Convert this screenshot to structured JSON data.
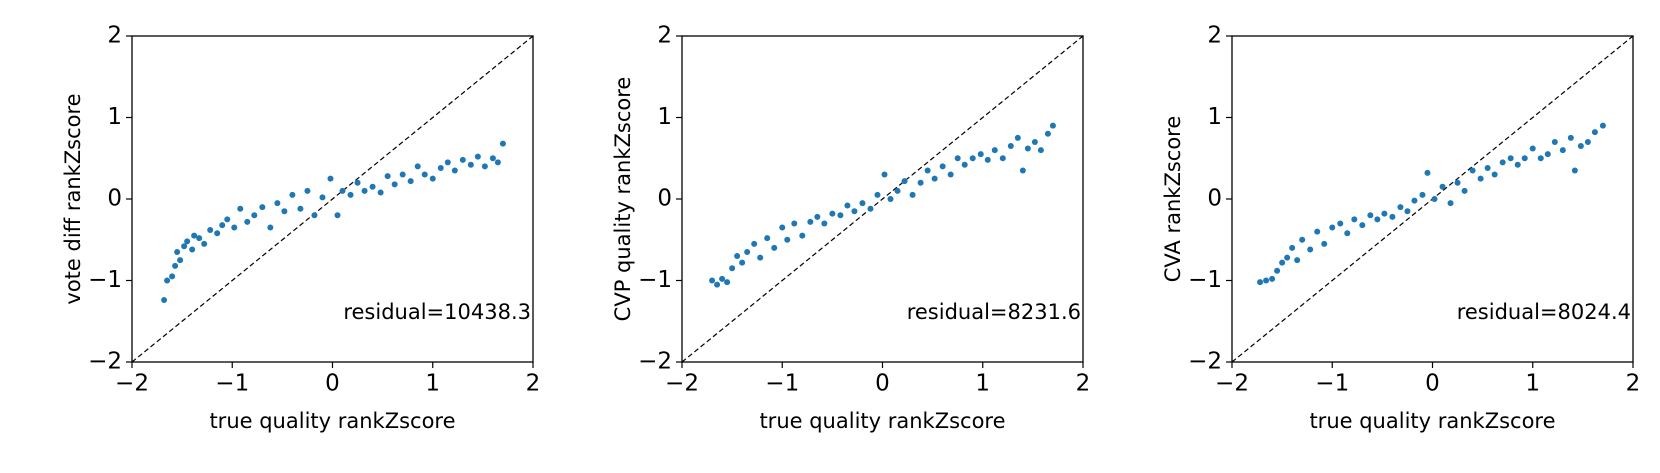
{
  "chart_data": [
    {
      "type": "scatter",
      "xlabel": "true quality rankZscore",
      "ylabel": "vote diff rankZscore",
      "annotation": "residual=10438.3",
      "color": "#1f77b4",
      "xlim": [
        -2,
        2
      ],
      "ylim": [
        -2,
        2
      ],
      "xticks": [
        {
          "value": -2,
          "label": "−2"
        },
        {
          "value": -1,
          "label": "−1"
        },
        0,
        1,
        2
      ],
      "yticks": [
        {
          "value": -2,
          "label": "−2"
        },
        {
          "value": -1,
          "label": "−1"
        },
        0,
        1,
        2
      ],
      "x": [
        -1.68,
        -1.65,
        -1.6,
        -1.57,
        -1.55,
        -1.52,
        -1.48,
        -1.45,
        -1.4,
        -1.38,
        -1.33,
        -1.28,
        -1.22,
        -1.15,
        -1.1,
        -1.05,
        -0.98,
        -0.92,
        -0.85,
        -0.78,
        -0.7,
        -0.62,
        -0.55,
        -0.48,
        -0.4,
        -0.32,
        -0.25,
        -0.18,
        -0.1,
        -0.02,
        0.05,
        0.1,
        0.18,
        0.25,
        0.32,
        0.4,
        0.48,
        0.55,
        0.62,
        0.7,
        0.78,
        0.85,
        0.92,
        1.0,
        1.08,
        1.15,
        1.22,
        1.3,
        1.38,
        1.45,
        1.52,
        1.6,
        1.65,
        1.7
      ],
      "values": [
        -1.24,
        -1.0,
        -0.95,
        -0.82,
        -0.65,
        -0.75,
        -0.58,
        -0.52,
        -0.62,
        -0.45,
        -0.48,
        -0.55,
        -0.38,
        -0.42,
        -0.32,
        -0.25,
        -0.35,
        -0.12,
        -0.28,
        -0.2,
        -0.1,
        -0.35,
        -0.05,
        -0.15,
        0.05,
        -0.12,
        0.1,
        -0.2,
        0.02,
        0.25,
        -0.2,
        0.1,
        0.05,
        0.2,
        0.1,
        0.15,
        0.08,
        0.28,
        0.18,
        0.3,
        0.22,
        0.4,
        0.3,
        0.25,
        0.38,
        0.45,
        0.35,
        0.48,
        0.42,
        0.52,
        0.4,
        0.5,
        0.45,
        0.68
      ]
    },
    {
      "type": "scatter",
      "xlabel": "true quality rankZscore",
      "ylabel": "CVP quality rankZscore",
      "annotation": "residual=8231.6",
      "color": "#1f77b4",
      "xlim": [
        -2,
        2
      ],
      "ylim": [
        -2,
        2
      ],
      "xticks": [
        {
          "value": -2,
          "label": "−2"
        },
        {
          "value": -1,
          "label": "−1"
        },
        0,
        1,
        2
      ],
      "yticks": [
        {
          "value": -2,
          "label": "−2"
        },
        {
          "value": -1,
          "label": "−1"
        },
        0,
        1,
        2
      ],
      "x": [
        -1.7,
        -1.65,
        -1.6,
        -1.55,
        -1.5,
        -1.45,
        -1.4,
        -1.35,
        -1.28,
        -1.22,
        -1.15,
        -1.08,
        -1.0,
        -0.95,
        -0.88,
        -0.8,
        -0.72,
        -0.65,
        -0.58,
        -0.5,
        -0.42,
        -0.35,
        -0.28,
        -0.2,
        -0.12,
        -0.05,
        0.02,
        0.08,
        0.15,
        0.22,
        0.3,
        0.38,
        0.45,
        0.52,
        0.6,
        0.68,
        0.75,
        0.82,
        0.9,
        0.98,
        1.05,
        1.12,
        1.2,
        1.28,
        1.35,
        1.4,
        1.45,
        1.52,
        1.58,
        1.65,
        1.7
      ],
      "values": [
        -1.0,
        -1.05,
        -0.98,
        -1.02,
        -0.85,
        -0.7,
        -0.78,
        -0.65,
        -0.55,
        -0.72,
        -0.48,
        -0.6,
        -0.35,
        -0.5,
        -0.3,
        -0.45,
        -0.28,
        -0.22,
        -0.3,
        -0.18,
        -0.2,
        -0.08,
        -0.15,
        -0.05,
        -0.12,
        0.05,
        0.3,
        0.0,
        0.1,
        0.22,
        0.05,
        0.2,
        0.35,
        0.25,
        0.4,
        0.3,
        0.5,
        0.42,
        0.5,
        0.55,
        0.48,
        0.6,
        0.5,
        0.65,
        0.75,
        0.35,
        0.62,
        0.7,
        0.6,
        0.8,
        0.9
      ]
    },
    {
      "type": "scatter",
      "xlabel": "true quality rankZscore",
      "ylabel": "CVA rankZscore",
      "annotation": "residual=8024.4",
      "color": "#1f77b4",
      "xlim": [
        -2,
        2
      ],
      "ylim": [
        -2,
        2
      ],
      "xticks": [
        {
          "value": -2,
          "label": "−2"
        },
        {
          "value": -1,
          "label": "−1"
        },
        0,
        1,
        2
      ],
      "yticks": [
        {
          "value": -2,
          "label": "−2"
        },
        {
          "value": -1,
          "label": "−1"
        },
        0,
        1,
        2
      ],
      "x": [
        -1.72,
        -1.66,
        -1.6,
        -1.55,
        -1.5,
        -1.45,
        -1.4,
        -1.35,
        -1.3,
        -1.22,
        -1.15,
        -1.08,
        -1.0,
        -0.92,
        -0.85,
        -0.78,
        -0.7,
        -0.62,
        -0.55,
        -0.48,
        -0.4,
        -0.32,
        -0.25,
        -0.18,
        -0.1,
        -0.05,
        0.02,
        0.1,
        0.18,
        0.25,
        0.32,
        0.4,
        0.48,
        0.55,
        0.62,
        0.7,
        0.78,
        0.85,
        0.92,
        1.0,
        1.08,
        1.15,
        1.22,
        1.3,
        1.38,
        1.42,
        1.48,
        1.55,
        1.62,
        1.7
      ],
      "values": [
        -1.02,
        -1.0,
        -0.98,
        -0.88,
        -0.78,
        -0.72,
        -0.6,
        -0.75,
        -0.5,
        -0.62,
        -0.4,
        -0.55,
        -0.35,
        -0.3,
        -0.42,
        -0.25,
        -0.32,
        -0.2,
        -0.25,
        -0.18,
        -0.22,
        -0.1,
        -0.15,
        -0.02,
        0.05,
        0.32,
        0.0,
        0.15,
        -0.05,
        0.2,
        0.1,
        0.35,
        0.25,
        0.38,
        0.3,
        0.45,
        0.5,
        0.42,
        0.5,
        0.62,
        0.5,
        0.55,
        0.7,
        0.6,
        0.75,
        0.35,
        0.65,
        0.7,
        0.82,
        0.9
      ]
    }
  ]
}
